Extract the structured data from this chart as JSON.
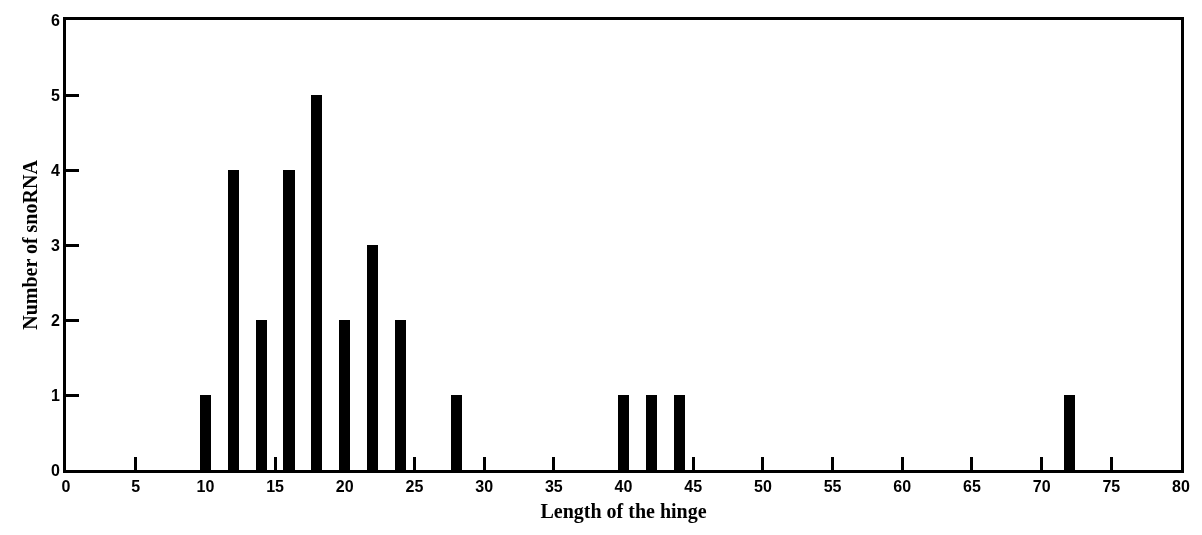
{
  "chart_data": {
    "type": "bar",
    "x": [
      10,
      12,
      14,
      16,
      18,
      20,
      22,
      24,
      28,
      40,
      42,
      44,
      72
    ],
    "values": [
      1,
      4,
      2,
      4,
      5,
      2,
      3,
      2,
      1,
      1,
      1,
      1,
      1
    ],
    "color": "#000000",
    "xlabel": "Length of the hinge",
    "ylabel": "Number of snoRNA",
    "xlim": [
      0,
      80
    ],
    "xticks": [
      0,
      5,
      10,
      15,
      20,
      25,
      30,
      35,
      40,
      45,
      50,
      55,
      60,
      65,
      70,
      75,
      80
    ],
    "ylim": [
      0,
      6
    ],
    "yticks": [
      0,
      1,
      2,
      3,
      4,
      5,
      6
    ]
  }
}
